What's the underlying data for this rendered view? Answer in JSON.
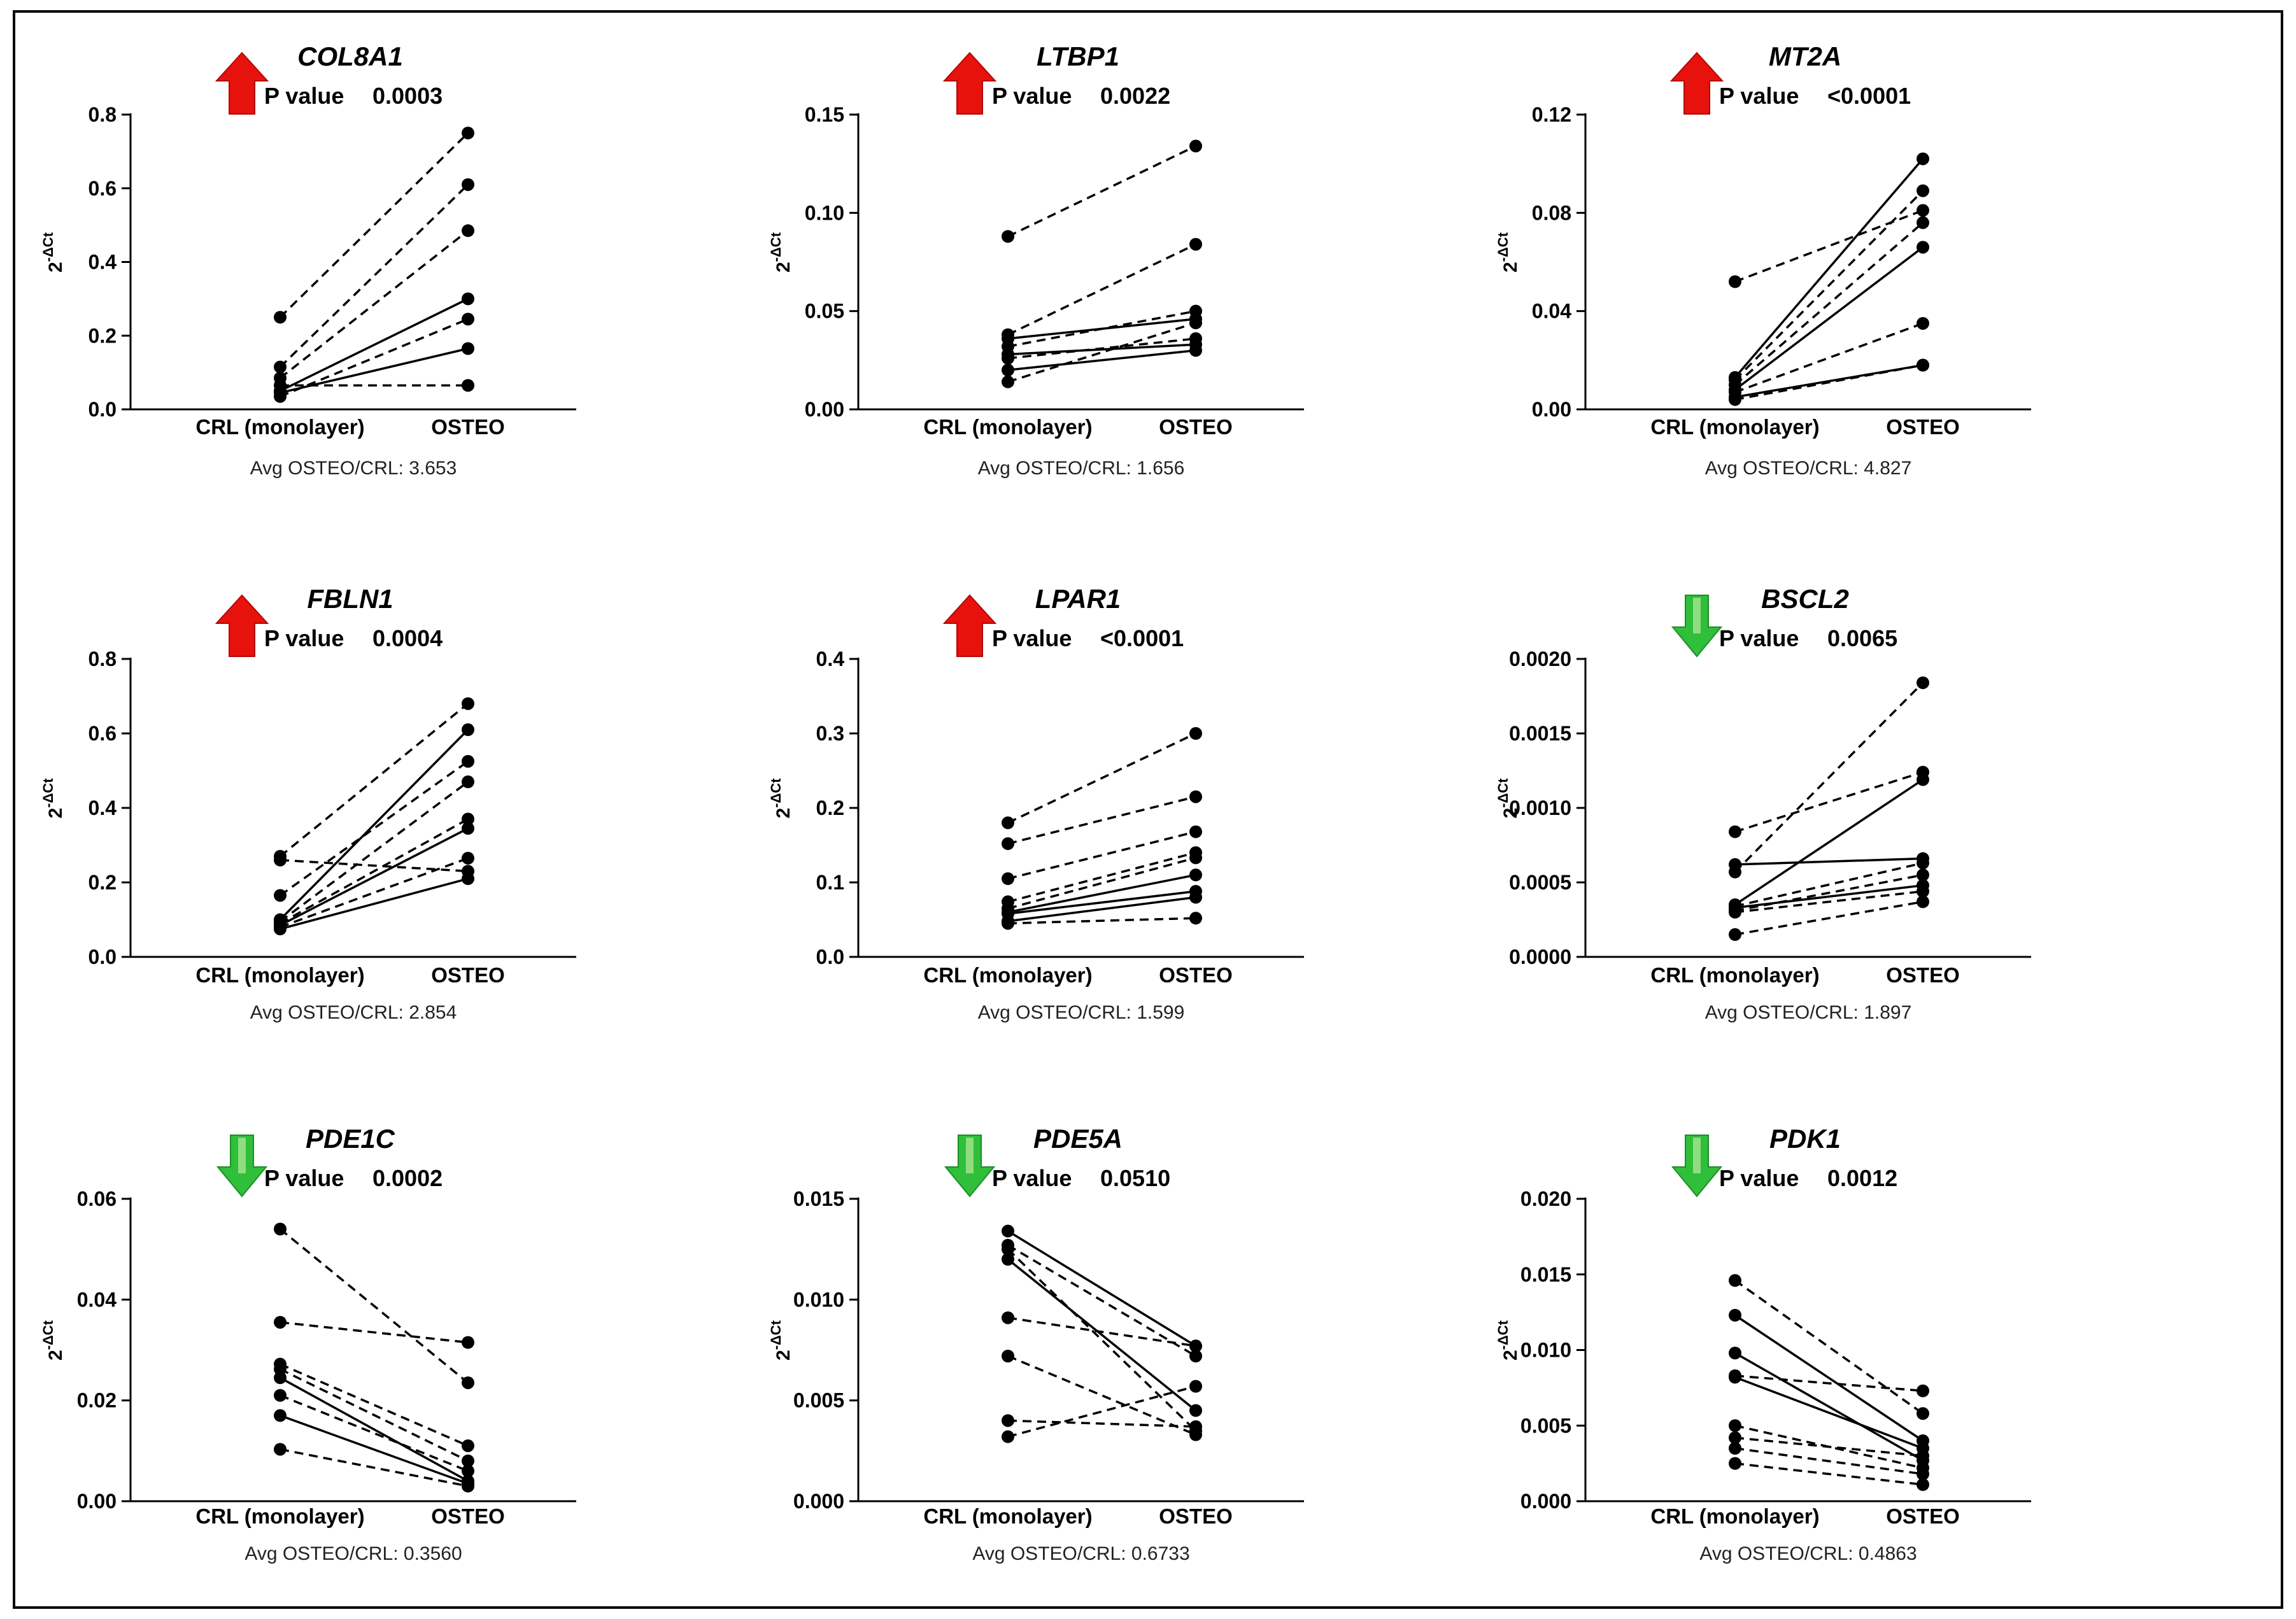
{
  "figure": {
    "border_color": "#000000"
  },
  "colors": {
    "up_arrow": "#e8120c",
    "up_arrow_dark": "#b20806",
    "down_arrow": "#2fbf3a",
    "down_arrow_light": "#9be08a",
    "line": "#000000"
  },
  "chart_data": [
    {
      "type": "paired-line",
      "gene": "COL8A1",
      "direction": "up",
      "direction_icon": "red-up-arrow-icon",
      "p_label": "P value",
      "p_value": "0.0003",
      "categories": [
        "CRL (monolayer)",
        "OSTEO"
      ],
      "ylabel": "2^-ΔCt",
      "ylim": [
        0,
        0.8
      ],
      "yticks": [
        0.0,
        0.2,
        0.4,
        0.6,
        0.8
      ],
      "ytick_labels": [
        "0.0",
        "0.2",
        "0.4",
        "0.6",
        "0.8"
      ],
      "avg_ratio_text": "Avg OSTEO/CRL: 3.653",
      "pairs": [
        {
          "crl": 0.25,
          "osteo": 0.75,
          "style": "dashed"
        },
        {
          "crl": 0.115,
          "osteo": 0.61,
          "style": "dashed"
        },
        {
          "crl": 0.085,
          "osteo": 0.485,
          "style": "dashed"
        },
        {
          "crl": 0.05,
          "osteo": 0.3,
          "style": "solid"
        },
        {
          "crl": 0.035,
          "osteo": 0.245,
          "style": "dashed"
        },
        {
          "crl": 0.045,
          "osteo": 0.165,
          "style": "solid"
        },
        {
          "crl": 0.065,
          "osteo": 0.065,
          "style": "dashed"
        }
      ]
    },
    {
      "type": "paired-line",
      "gene": "LTBP1",
      "direction": "up",
      "direction_icon": "red-up-arrow-icon",
      "p_label": "P value",
      "p_value": "0.0022",
      "categories": [
        "CRL (monolayer)",
        "OSTEO"
      ],
      "ylabel": "2^-ΔCt",
      "ylim": [
        0,
        0.15
      ],
      "yticks": [
        0.0,
        0.05,
        0.1,
        0.15
      ],
      "ytick_labels": [
        "0.00",
        "0.05",
        "0.10",
        "0.15"
      ],
      "avg_ratio_text": "Avg OSTEO/CRL: 1.656",
      "pairs": [
        {
          "crl": 0.088,
          "osteo": 0.134,
          "style": "dashed"
        },
        {
          "crl": 0.038,
          "osteo": 0.084,
          "style": "dashed"
        },
        {
          "crl": 0.032,
          "osteo": 0.05,
          "style": "dashed"
        },
        {
          "crl": 0.036,
          "osteo": 0.046,
          "style": "solid"
        },
        {
          "crl": 0.026,
          "osteo": 0.036,
          "style": "dashed"
        },
        {
          "crl": 0.02,
          "osteo": 0.03,
          "style": "solid"
        },
        {
          "crl": 0.014,
          "osteo": 0.044,
          "style": "dashed"
        },
        {
          "crl": 0.028,
          "osteo": 0.033,
          "style": "solid"
        }
      ]
    },
    {
      "type": "paired-line",
      "gene": "MT2A",
      "direction": "up",
      "direction_icon": "red-up-arrow-icon",
      "p_label": "P value",
      "p_value": "<0.0001",
      "categories": [
        "CRL (monolayer)",
        "OSTEO"
      ],
      "ylabel": "2^-ΔCt",
      "ylim": [
        0,
        0.12
      ],
      "yticks": [
        0.0,
        0.04,
        0.08,
        0.12
      ],
      "ytick_labels": [
        "0.00",
        "0.04",
        "0.08",
        "0.12"
      ],
      "avg_ratio_text": "Avg OSTEO/CRL: 4.827",
      "pairs": [
        {
          "crl": 0.052,
          "osteo": 0.081,
          "style": "dashed"
        },
        {
          "crl": 0.013,
          "osteo": 0.102,
          "style": "solid"
        },
        {
          "crl": 0.012,
          "osteo": 0.089,
          "style": "dashed"
        },
        {
          "crl": 0.01,
          "osteo": 0.076,
          "style": "dashed"
        },
        {
          "crl": 0.008,
          "osteo": 0.066,
          "style": "solid"
        },
        {
          "crl": 0.007,
          "osteo": 0.035,
          "style": "dashed"
        },
        {
          "crl": 0.005,
          "osteo": 0.018,
          "style": "solid"
        },
        {
          "crl": 0.004,
          "osteo": 0.018,
          "style": "dashed"
        }
      ]
    },
    {
      "type": "paired-line",
      "gene": "FBLN1",
      "direction": "up",
      "direction_icon": "red-up-arrow-icon",
      "p_label": "P value",
      "p_value": "0.0004",
      "categories": [
        "CRL (monolayer)",
        "OSTEO"
      ],
      "ylabel": "2^-ΔCt",
      "ylim": [
        0,
        0.8
      ],
      "yticks": [
        0.0,
        0.2,
        0.4,
        0.6,
        0.8
      ],
      "ytick_labels": [
        "0.0",
        "0.2",
        "0.4",
        "0.6",
        "0.8"
      ],
      "avg_ratio_text": "Avg OSTEO/CRL: 2.854",
      "pairs": [
        {
          "crl": 0.27,
          "osteo": 0.68,
          "style": "dashed"
        },
        {
          "crl": 0.26,
          "osteo": 0.23,
          "style": "dashed"
        },
        {
          "crl": 0.165,
          "osteo": 0.525,
          "style": "dashed"
        },
        {
          "crl": 0.1,
          "osteo": 0.61,
          "style": "solid"
        },
        {
          "crl": 0.095,
          "osteo": 0.47,
          "style": "dashed"
        },
        {
          "crl": 0.09,
          "osteo": 0.37,
          "style": "dashed"
        },
        {
          "crl": 0.085,
          "osteo": 0.345,
          "style": "solid"
        },
        {
          "crl": 0.08,
          "osteo": 0.265,
          "style": "dashed"
        },
        {
          "crl": 0.075,
          "osteo": 0.21,
          "style": "solid"
        }
      ]
    },
    {
      "type": "paired-line",
      "gene": "LPAR1",
      "direction": "up",
      "direction_icon": "red-up-arrow-icon",
      "p_label": "P value",
      "p_value": "<0.0001",
      "categories": [
        "CRL (monolayer)",
        "OSTEO"
      ],
      "ylabel": "2^-ΔCt",
      "ylim": [
        0,
        0.4
      ],
      "yticks": [
        0.0,
        0.1,
        0.2,
        0.3,
        0.4
      ],
      "ytick_labels": [
        "0.0",
        "0.1",
        "0.2",
        "0.3",
        "0.4"
      ],
      "avg_ratio_text": "Avg OSTEO/CRL: 1.599",
      "pairs": [
        {
          "crl": 0.18,
          "osteo": 0.3,
          "style": "dashed"
        },
        {
          "crl": 0.152,
          "osteo": 0.215,
          "style": "dashed"
        },
        {
          "crl": 0.105,
          "osteo": 0.168,
          "style": "dashed"
        },
        {
          "crl": 0.074,
          "osteo": 0.14,
          "style": "dashed"
        },
        {
          "crl": 0.065,
          "osteo": 0.133,
          "style": "dashed"
        },
        {
          "crl": 0.06,
          "osteo": 0.11,
          "style": "solid"
        },
        {
          "crl": 0.058,
          "osteo": 0.088,
          "style": "solid"
        },
        {
          "crl": 0.048,
          "osteo": 0.08,
          "style": "solid"
        },
        {
          "crl": 0.045,
          "osteo": 0.052,
          "style": "dashed"
        }
      ]
    },
    {
      "type": "paired-line",
      "gene": "BSCL2",
      "direction": "down",
      "direction_icon": "green-down-arrow-icon",
      "p_label": "P value",
      "p_value": "0.0065",
      "categories": [
        "CRL (monolayer)",
        "OSTEO"
      ],
      "ylabel": "2^-ΔCt",
      "ylim": [
        0,
        0.002
      ],
      "yticks": [
        0.0,
        0.0005,
        0.001,
        0.0015,
        0.002
      ],
      "ytick_labels": [
        "0.0000",
        "0.0005",
        "0.0010",
        "0.0015",
        "0.0020"
      ],
      "avg_ratio_text": "Avg OSTEO/CRL: 1.897",
      "pairs": [
        {
          "crl": 0.00084,
          "osteo": 0.00124,
          "style": "dashed"
        },
        {
          "crl": 0.00062,
          "osteo": 0.00066,
          "style": "solid"
        },
        {
          "crl": 0.00057,
          "osteo": 0.00184,
          "style": "dashed"
        },
        {
          "crl": 0.00035,
          "osteo": 0.00119,
          "style": "solid"
        },
        {
          "crl": 0.00034,
          "osteo": 0.00063,
          "style": "dashed"
        },
        {
          "crl": 0.00033,
          "osteo": 0.00048,
          "style": "solid"
        },
        {
          "crl": 0.00031,
          "osteo": 0.00055,
          "style": "dashed"
        },
        {
          "crl": 0.0003,
          "osteo": 0.00044,
          "style": "dashed"
        },
        {
          "crl": 0.00015,
          "osteo": 0.00037,
          "style": "dashed"
        }
      ]
    },
    {
      "type": "paired-line",
      "gene": "PDE1C",
      "direction": "down",
      "direction_icon": "green-down-arrow-icon",
      "p_label": "P value",
      "p_value": "0.0002",
      "categories": [
        "CRL (monolayer)",
        "OSTEO"
      ],
      "ylabel": "2^-ΔCt",
      "ylim": [
        0,
        0.06
      ],
      "yticks": [
        0.0,
        0.02,
        0.04,
        0.06
      ],
      "ytick_labels": [
        "0.00",
        "0.02",
        "0.04",
        "0.06"
      ],
      "avg_ratio_text": "Avg OSTEO/CRL: 0.3560",
      "pairs": [
        {
          "crl": 0.054,
          "osteo": 0.0235,
          "style": "dashed"
        },
        {
          "crl": 0.0355,
          "osteo": 0.0315,
          "style": "dashed"
        },
        {
          "crl": 0.0272,
          "osteo": 0.011,
          "style": "dashed"
        },
        {
          "crl": 0.0262,
          "osteo": 0.008,
          "style": "dashed"
        },
        {
          "crl": 0.0245,
          "osteo": 0.004,
          "style": "solid"
        },
        {
          "crl": 0.021,
          "osteo": 0.006,
          "style": "dashed"
        },
        {
          "crl": 0.017,
          "osteo": 0.0035,
          "style": "solid"
        },
        {
          "crl": 0.0103,
          "osteo": 0.003,
          "style": "dashed"
        }
      ]
    },
    {
      "type": "paired-line",
      "gene": "PDE5A",
      "direction": "down",
      "direction_icon": "green-down-arrow-icon",
      "p_label": "P value",
      "p_value": "0.0510",
      "categories": [
        "CRL (monolayer)",
        "OSTEO"
      ],
      "ylabel": "2^-ΔCt",
      "ylim": [
        0,
        0.015
      ],
      "yticks": [
        0.0,
        0.005,
        0.01,
        0.015
      ],
      "ytick_labels": [
        "0.000",
        "0.005",
        "0.010",
        "0.015"
      ],
      "avg_ratio_text": "Avg OSTEO/CRL: 0.6733",
      "pairs": [
        {
          "crl": 0.0134,
          "osteo": 0.0077,
          "style": "solid"
        },
        {
          "crl": 0.0127,
          "osteo": 0.0072,
          "style": "dashed"
        },
        {
          "crl": 0.012,
          "osteo": 0.0045,
          "style": "solid"
        },
        {
          "crl": 0.0125,
          "osteo": 0.0035,
          "style": "dashed"
        },
        {
          "crl": 0.0091,
          "osteo": 0.0077,
          "style": "dashed"
        },
        {
          "crl": 0.0072,
          "osteo": 0.0033,
          "style": "dashed"
        },
        {
          "crl": 0.004,
          "osteo": 0.0037,
          "style": "dashed"
        },
        {
          "crl": 0.0032,
          "osteo": 0.0057,
          "style": "dashed"
        }
      ]
    },
    {
      "type": "paired-line",
      "gene": "PDK1",
      "direction": "down",
      "direction_icon": "green-down-arrow-icon",
      "p_label": "P value",
      "p_value": "0.0012",
      "categories": [
        "CRL (monolayer)",
        "OSTEO"
      ],
      "ylabel": "2^-ΔCt",
      "ylim": [
        0,
        0.02
      ],
      "yticks": [
        0.0,
        0.005,
        0.01,
        0.015,
        0.02
      ],
      "ytick_labels": [
        "0.000",
        "0.005",
        "0.010",
        "0.015",
        "0.020"
      ],
      "avg_ratio_text": "Avg OSTEO/CRL: 0.4863",
      "pairs": [
        {
          "crl": 0.0146,
          "osteo": 0.0058,
          "style": "dashed"
        },
        {
          "crl": 0.0123,
          "osteo": 0.004,
          "style": "solid"
        },
        {
          "crl": 0.0098,
          "osteo": 0.0027,
          "style": "solid"
        },
        {
          "crl": 0.0083,
          "osteo": 0.0073,
          "style": "dashed"
        },
        {
          "crl": 0.0082,
          "osteo": 0.0035,
          "style": "solid"
        },
        {
          "crl": 0.005,
          "osteo": 0.0022,
          "style": "dashed"
        },
        {
          "crl": 0.0042,
          "osteo": 0.003,
          "style": "dashed"
        },
        {
          "crl": 0.0035,
          "osteo": 0.0018,
          "style": "dashed"
        },
        {
          "crl": 0.0025,
          "osteo": 0.0011,
          "style": "dashed"
        }
      ]
    }
  ]
}
